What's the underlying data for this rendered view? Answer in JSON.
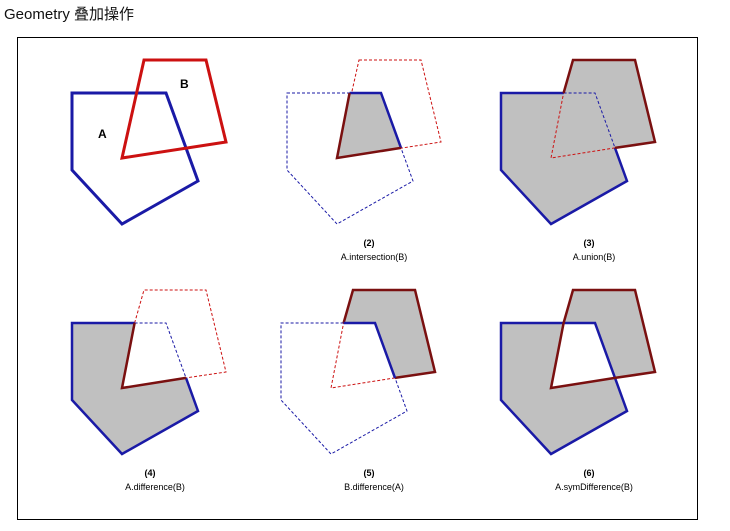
{
  "header": {
    "title": "Geometry 叠加操作"
  },
  "colors": {
    "polygon_a": "#1a1aa6",
    "polygon_b": "#cc1111",
    "result_fill": "#c0c0c0",
    "result_stroke_b": "#7a1010"
  },
  "panels": [
    {
      "number": "",
      "expression": "",
      "label_a": "A",
      "label_b": "B",
      "operation": "original"
    },
    {
      "number": "(2)",
      "expression": "A.intersection(B)",
      "operation": "intersection"
    },
    {
      "number": "(3)",
      "expression": "A.union(B)",
      "operation": "union"
    },
    {
      "number": "(4)",
      "expression": "A.difference(B)",
      "operation": "difference"
    },
    {
      "number": "(5)",
      "expression": "B.difference(A)",
      "operation": "difference_ba"
    },
    {
      "number": "(6)",
      "expression": "A.symDifference(B)",
      "operation": "symDifference"
    }
  ]
}
